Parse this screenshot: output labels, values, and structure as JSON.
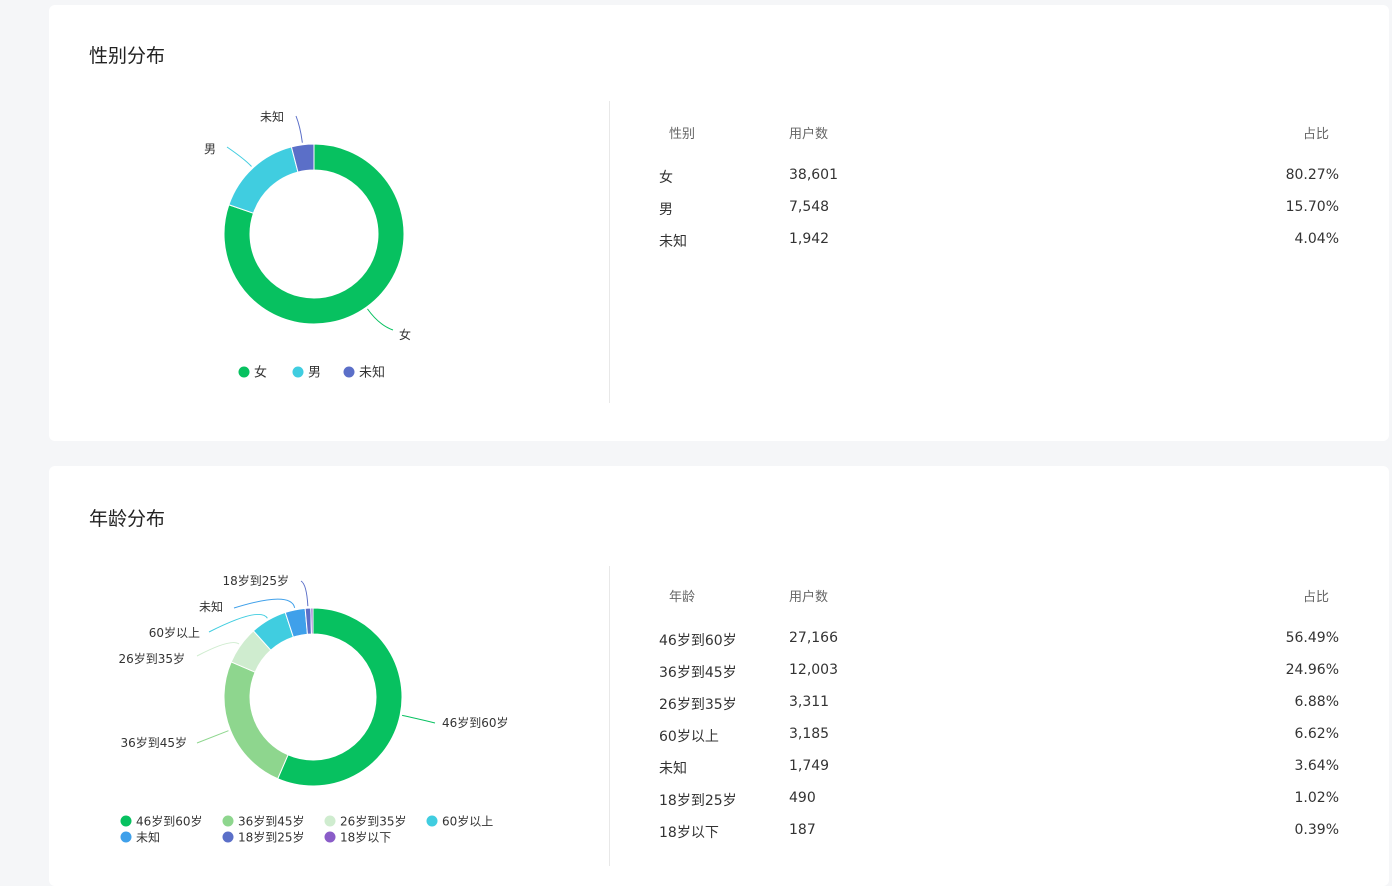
{
  "gender": {
    "title": "性别分布",
    "table": {
      "headers": [
        "性别",
        "用户数",
        "占比"
      ],
      "rows": [
        [
          "女",
          "38,601",
          "80.27%"
        ],
        [
          "男",
          "7,548",
          "15.70%"
        ],
        [
          "未知",
          "1,942",
          "4.04%"
        ]
      ]
    }
  },
  "age": {
    "title": "年龄分布",
    "table": {
      "headers": [
        "年龄",
        "用户数",
        "占比"
      ],
      "rows": [
        [
          "46岁到60岁",
          "27,166",
          "56.49%"
        ],
        [
          "36岁到45岁",
          "12,003",
          "24.96%"
        ],
        [
          "26岁到35岁",
          "3,311",
          "6.88%"
        ],
        [
          "60岁以上",
          "3,185",
          "6.62%"
        ],
        [
          "未知",
          "1,749",
          "3.64%"
        ],
        [
          "18岁到25岁",
          "490",
          "1.02%"
        ],
        [
          "18岁以下",
          "187",
          "0.39%"
        ]
      ]
    }
  },
  "chart_data": [
    {
      "type": "pie",
      "variant": "donut",
      "categories": [
        "女",
        "男",
        "未知"
      ],
      "values": [
        38601,
        7548,
        1942
      ],
      "colors": [
        "#07c160",
        "#40cde0",
        "#5b6fc8"
      ],
      "legend_position": "bottom"
    },
    {
      "type": "pie",
      "variant": "donut",
      "categories": [
        "46岁到60岁",
        "36岁到45岁",
        "26岁到35岁",
        "60岁以上",
        "未知",
        "18岁到25岁",
        "18岁以下"
      ],
      "values": [
        27166,
        12003,
        3311,
        3185,
        1749,
        490,
        187
      ],
      "colors": [
        "#07c160",
        "#8ed68e",
        "#cfeccf",
        "#40cde0",
        "#3fa0ea",
        "#5b6fc8",
        "#8a5cc8"
      ],
      "legend_position": "bottom"
    }
  ]
}
